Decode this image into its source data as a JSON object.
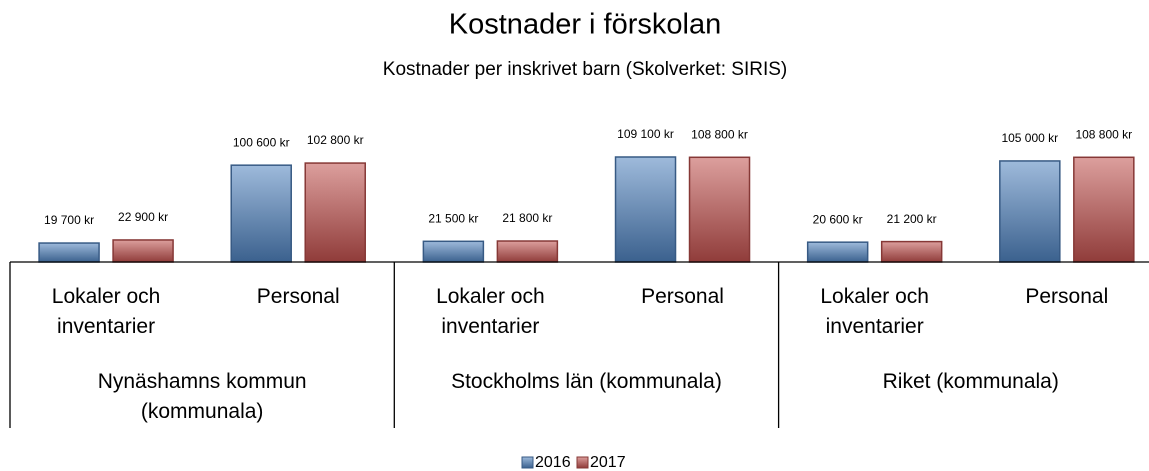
{
  "chart_data": {
    "type": "bar",
    "title": "Kostnader i förskolan",
    "subtitle": "Kostnader per inskrivet barn (Skolverket: SIRIS)",
    "groups": [
      "Nynäshamns kommun (kommunala)",
      "Stockholms län (kommunala)",
      "Riket (kommunala)"
    ],
    "categories": [
      "Lokaler och inventarier",
      "Personal",
      "Lokaler och inventarier",
      "Personal",
      "Lokaler och inventarier",
      "Personal"
    ],
    "series": [
      {
        "name": "2016",
        "color": "#4f81bd",
        "values": [
          19700,
          100600,
          21500,
          109100,
          20600,
          105000
        ],
        "value_labels": [
          "19 700 kr",
          "100 600 kr",
          "21 500 kr",
          "109 100 kr",
          "20 600 kr",
          "105 000 kr"
        ]
      },
      {
        "name": "2017",
        "color": "#c0504d",
        "values": [
          22900,
          102800,
          21800,
          108800,
          21200,
          108800
        ],
        "value_labels": [
          "22 900 kr",
          "102 800 kr",
          "21 800 kr",
          "108 800 kr",
          "21 200 kr",
          "108 800 kr"
        ]
      }
    ],
    "legend": "bottom"
  }
}
